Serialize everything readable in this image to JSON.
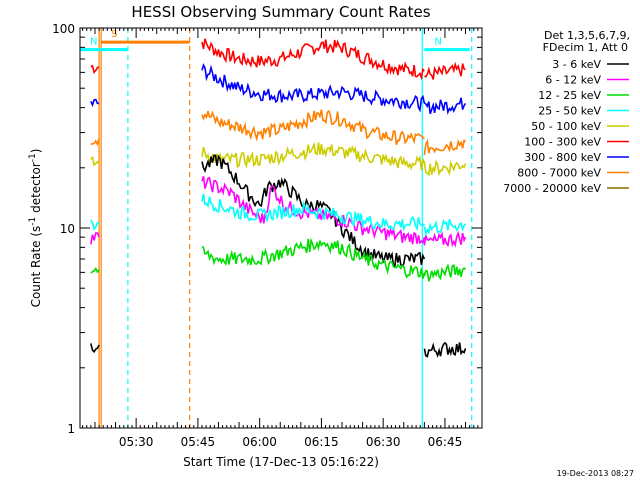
{
  "chart_data": {
    "type": "line",
    "title": "HESSI Observing Summary Count Rates",
    "xlabel": "Start Time (17-Dec-13 05:16:22)",
    "ylabel": "Count Rate (s",
    "ylabel_sup": "-1",
    "ylabel_mid": " detector",
    "ylabel_end": ")",
    "y_scale": "log",
    "ylim": [
      1,
      100
    ],
    "xlim": [
      "05:16:22",
      "06:54:00"
    ],
    "x_ticks": [
      "05:30",
      "05:45",
      "06:00",
      "06:15",
      "06:30",
      "06:45"
    ],
    "y_ticks": [
      "1",
      "10",
      "100"
    ],
    "grid": false,
    "legend_position": "right",
    "legend_header": [
      "Det 1,3,5,6,7,9,",
      "FDecim 1, Att 0"
    ],
    "date_stamp": "19-Dec-2013 08:27",
    "colors": {
      "3 - 6 keV": "#000000",
      "6 - 12 keV": "#ff00ff",
      "12 - 25 keV": "#00dd00",
      "25 - 50 keV": "#00ffff",
      "50 - 100 keV": "#cccc00",
      "100 - 300 keV": "#ff0000",
      "300 - 800 keV": "#0000ff",
      "800 - 7000 keV": "#ff8000",
      "7000 - 20000 keV": "#8c6a00"
    },
    "legend": [
      {
        "label": "3 - 6 keV"
      },
      {
        "label": "6 - 12 keV"
      },
      {
        "label": "12 - 25 keV"
      },
      {
        "label": "25 - 50 keV"
      },
      {
        "label": "50 - 100 keV"
      },
      {
        "label": "100 - 300 keV"
      },
      {
        "label": "300 - 800 keV"
      },
      {
        "label": "800 - 7000 keV"
      },
      {
        "label": "7000 - 20000 keV"
      }
    ],
    "series": [
      {
        "color": "#ff0000",
        "segments": [
          {
            "x": [
              "05:19",
              "05:21"
            ],
            "y": [
              64,
              64
            ]
          },
          {
            "x": [
              "05:46",
              "05:50",
              "05:55",
              "06:00",
              "06:05",
              "06:10",
              "06:15",
              "06:20",
              "06:25",
              "06:30",
              "06:35",
              "06:40"
            ],
            "y": [
              85,
              76,
              70,
              68,
              70,
              76,
              82,
              80,
              72,
              66,
              62,
              61
            ]
          },
          {
            "x": [
              "06:40",
              "06:45",
              "06:50"
            ],
            "y": [
              58,
              60,
              62
            ]
          }
        ]
      },
      {
        "color": "#0000ff",
        "segments": [
          {
            "x": [
              "05:19",
              "05:21"
            ],
            "y": [
              42,
              42
            ]
          },
          {
            "x": [
              "05:46",
              "05:50",
              "05:55",
              "06:00",
              "06:05",
              "06:10",
              "06:15",
              "06:20",
              "06:25",
              "06:30",
              "06:35",
              "06:40"
            ],
            "y": [
              62,
              56,
              50,
              47,
              46,
              46,
              47,
              48,
              46,
              44,
              43,
              42
            ]
          },
          {
            "x": [
              "06:40",
              "06:45",
              "06:50"
            ],
            "y": [
              40,
              41,
              42
            ]
          }
        ]
      },
      {
        "color": "#ff8000",
        "segments": [
          {
            "x": [
              "05:19",
              "05:21"
            ],
            "y": [
              28,
              28
            ]
          },
          {
            "x": [
              "05:46",
              "05:50",
              "05:55",
              "06:00",
              "06:05",
              "06:10",
              "06:15",
              "06:20",
              "06:25",
              "06:30",
              "06:35",
              "06:40"
            ],
            "y": [
              38,
              34,
              32,
              30,
              31,
              34,
              37,
              35,
              31,
              29,
              28,
              28
            ]
          },
          {
            "x": [
              "06:40",
              "06:45",
              "06:50"
            ],
            "y": [
              25,
              26,
              27
            ]
          }
        ]
      },
      {
        "color": "#cccc00",
        "segments": [
          {
            "x": [
              "05:19",
              "05:21"
            ],
            "y": [
              21,
              21
            ]
          },
          {
            "x": [
              "05:46",
              "05:50",
              "05:55",
              "06:00",
              "06:05",
              "06:10",
              "06:15",
              "06:20",
              "06:25",
              "06:30",
              "06:35",
              "06:40"
            ],
            "y": [
              24,
              22,
              22,
              22,
              23,
              24,
              25,
              24,
              23,
              22,
              21,
              21
            ]
          },
          {
            "x": [
              "06:40",
              "06:45",
              "06:50"
            ],
            "y": [
              20,
              20,
              21
            ]
          }
        ]
      },
      {
        "color": "#000000",
        "segments": [
          {
            "x": [
              "05:19",
              "05:21"
            ],
            "y": [
              2.6,
              2.6
            ]
          },
          {
            "x": [
              "05:46",
              "05:50",
              "05:53",
              "05:55",
              "05:57",
              "06:00",
              "06:02",
              "06:05",
              "06:08",
              "06:11",
              "06:14",
              "06:17",
              "06:20",
              "06:23",
              "06:26",
              "06:30",
              "06:35",
              "06:40"
            ],
            "y": [
              20,
              22,
              19,
              17,
              15,
              13,
              16,
              17,
              15,
              13,
              13,
              12,
              10,
              8.5,
              7.5,
              7,
              7,
              7
            ]
          },
          {
            "x": [
              "06:40",
              "06:45",
              "06:50"
            ],
            "y": [
              2.4,
              2.5,
              2.5
            ]
          }
        ]
      },
      {
        "color": "#ff00ff",
        "segments": [
          {
            "x": [
              "05:19",
              "05:21"
            ],
            "y": [
              9,
              9
            ]
          },
          {
            "x": [
              "05:46",
              "05:50",
              "05:53",
              "05:56",
              "05:58",
              "06:01",
              "06:03",
              "06:06",
              "06:10",
              "06:15",
              "06:20",
              "06:25",
              "06:30",
              "06:35",
              "06:40"
            ],
            "y": [
              17,
              16,
              15,
              13,
              12,
              11,
              16,
              13,
              12,
              11.5,
              11,
              10,
              9.5,
              9,
              9
            ]
          },
          {
            "x": [
              "06:40",
              "06:45",
              "06:50"
            ],
            "y": [
              8.5,
              8.7,
              9
            ]
          }
        ]
      },
      {
        "color": "#00ffff",
        "segments": [
          {
            "x": [
              "05:19",
              "05:21"
            ],
            "y": [
              10.5,
              10.5
            ]
          },
          {
            "x": [
              "05:46",
              "05:50",
              "05:55",
              "06:00",
              "06:05",
              "06:10",
              "06:15",
              "06:20",
              "06:25",
              "06:30",
              "06:35",
              "06:40"
            ],
            "y": [
              14,
              13,
              12,
              11.5,
              12,
              12.5,
              12,
              11.5,
              11,
              10.5,
              10.5,
              10.5
            ]
          },
          {
            "x": [
              "06:40",
              "06:45",
              "06:50"
            ],
            "y": [
              10,
              10.2,
              10.5
            ]
          }
        ]
      },
      {
        "color": "#00dd00",
        "segments": [
          {
            "x": [
              "05:19",
              "05:21"
            ],
            "y": [
              6.2,
              6.2
            ]
          },
          {
            "x": [
              "05:46",
              "05:50",
              "05:55",
              "06:00",
              "06:05",
              "06:10",
              "06:15",
              "06:20",
              "06:25",
              "06:30",
              "06:35",
              "06:40"
            ],
            "y": [
              7.5,
              7,
              7,
              7,
              7.5,
              8,
              8.5,
              8,
              7,
              6.5,
              6.2,
              6
            ]
          },
          {
            "x": [
              "06:40",
              "06:45",
              "06:50"
            ],
            "y": [
              5.8,
              6,
              6.2
            ]
          }
        ]
      }
    ],
    "markers": [
      {
        "name": "S",
        "color": "#ff8000",
        "x_start": "05:21:30",
        "x_end": "05:43",
        "y": 85
      },
      {
        "name": "N",
        "color": "#00ffff",
        "x_start": "05:16:22",
        "x_end": "05:28",
        "y": 78
      },
      {
        "name": "N",
        "color": "#00ffff",
        "x_start": "06:40",
        "x_end": "06:51",
        "y": 78
      }
    ],
    "vlines": [
      {
        "x": "05:21:00",
        "color": "#ff8000",
        "dash": false
      },
      {
        "x": "05:21:30",
        "color": "#ff8000",
        "dash": false
      },
      {
        "x": "05:28:00",
        "color": "#00ffff",
        "dash": true
      },
      {
        "x": "05:43:00",
        "color": "#ff8000",
        "dash": true
      },
      {
        "x": "06:39:30",
        "color": "#00ffff",
        "dash": false
      },
      {
        "x": "06:51:30",
        "color": "#00ffff",
        "dash": true
      }
    ]
  }
}
